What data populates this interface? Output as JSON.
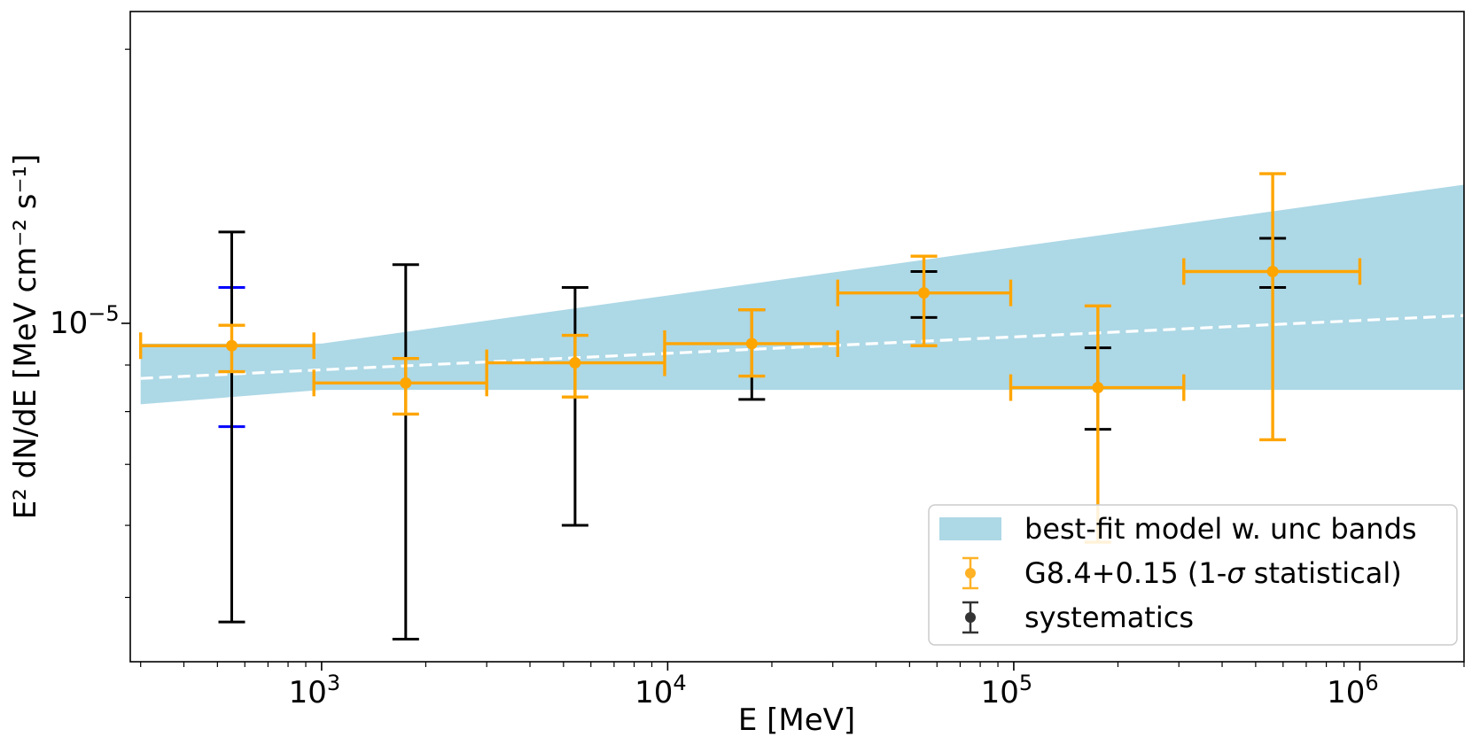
{
  "chart_data": {
    "type": "scatter",
    "xscale": "log",
    "yscale": "log",
    "xlabel": "E [MeV]",
    "ylabel": "E² dN/dE [MeV cm⁻² s⁻¹]",
    "xlim": [
      280,
      2000000
    ],
    "ylim": [
      4.25e-06,
      2.2e-05
    ],
    "x_ticks": [
      {
        "value": 1000,
        "base": "10",
        "exp": "3"
      },
      {
        "value": 10000,
        "base": "10",
        "exp": "4"
      },
      {
        "value": 100000,
        "base": "10",
        "exp": "5"
      },
      {
        "value": 1000000,
        "base": "10",
        "exp": "6"
      }
    ],
    "y_ticks": [
      {
        "value": 1e-05,
        "base": "10",
        "exp": "−5"
      }
    ],
    "model_line": {
      "style": "dashed",
      "color": "#ffffff",
      "points": [
        [
          300,
          8.7e-06
        ],
        [
          2000000,
          1.02e-05
        ]
      ]
    },
    "uncertainty_band": {
      "color": "#add8e6",
      "upper": [
        [
          300,
          9.5e-06
        ],
        [
          1000,
          9.5e-06
        ],
        [
          2000000,
          1.42e-05
        ]
      ],
      "lower": [
        [
          300,
          8.15e-06
        ],
        [
          1000,
          8.45e-06
        ],
        [
          2000000,
          8.45e-06
        ]
      ]
    },
    "series": [
      {
        "name": "G8.4+0.15 (1-σ statistical)",
        "color": "#ffa500",
        "points": [
          {
            "x": 550,
            "y": 9.45e-06,
            "xlo": 300,
            "xhi": 950,
            "ylo": 8.85e-06,
            "yhi": 9.95e-06
          },
          {
            "x": 1750,
            "y": 8.6e-06,
            "xlo": 950,
            "xhi": 3000,
            "ylo": 7.95e-06,
            "yhi": 9.15e-06
          },
          {
            "x": 5400,
            "y": 9.05e-06,
            "xlo": 3000,
            "xhi": 9800,
            "ylo": 8.3e-06,
            "yhi": 9.7e-06
          },
          {
            "x": 17500,
            "y": 9.5e-06,
            "xlo": 9800,
            "xhi": 31000,
            "ylo": 8.75e-06,
            "yhi": 1.035e-05
          },
          {
            "x": 55000,
            "y": 1.08e-05,
            "xlo": 31000,
            "xhi": 98000,
            "ylo": 9.45e-06,
            "yhi": 1.185e-05
          },
          {
            "x": 175000,
            "y": 8.5e-06,
            "xlo": 98000,
            "xhi": 310000,
            "ylo": 5.75e-06,
            "yhi": 1.045e-05
          },
          {
            "x": 560000,
            "y": 1.14e-05,
            "xlo": 310000,
            "xhi": 1000000,
            "ylo": 7.45e-06,
            "yhi": 1.46e-05
          }
        ]
      },
      {
        "name": "systematics",
        "color": "#000000",
        "points": [
          {
            "x": 550,
            "ylo": 4.7e-06,
            "yhi": 1.26e-05
          },
          {
            "x": 1750,
            "ylo": 4.5e-06,
            "yhi": 1.16e-05
          },
          {
            "x": 5400,
            "ylo": 6e-06,
            "yhi": 1.095e-05
          },
          {
            "x": 17500,
            "ylo": 8.25e-06,
            "yhi": 1.035e-05
          },
          {
            "x": 55000,
            "ylo": 1.015e-05,
            "yhi": 1.14e-05
          },
          {
            "x": 175000,
            "ylo": 7.65e-06,
            "yhi": 9.4e-06
          },
          {
            "x": 560000,
            "ylo": 1.095e-05,
            "yhi": 1.24e-05
          }
        ]
      },
      {
        "name": "",
        "color": "#0000ff",
        "points": [
          {
            "x": 550,
            "ylo": 7.7e-06,
            "yhi": 1.095e-05
          }
        ]
      }
    ],
    "legend": {
      "placement": "lower-right",
      "entries": [
        {
          "label": "best-fit model w. unc bands",
          "kind": "patch",
          "color": "#add8e6"
        },
        {
          "label": "G8.4+0.15 (1-σ statistical)",
          "kind": "errorbar",
          "color": "#ffa500"
        },
        {
          "label": "systematics",
          "kind": "errorbar",
          "color": "#000000"
        }
      ]
    }
  }
}
